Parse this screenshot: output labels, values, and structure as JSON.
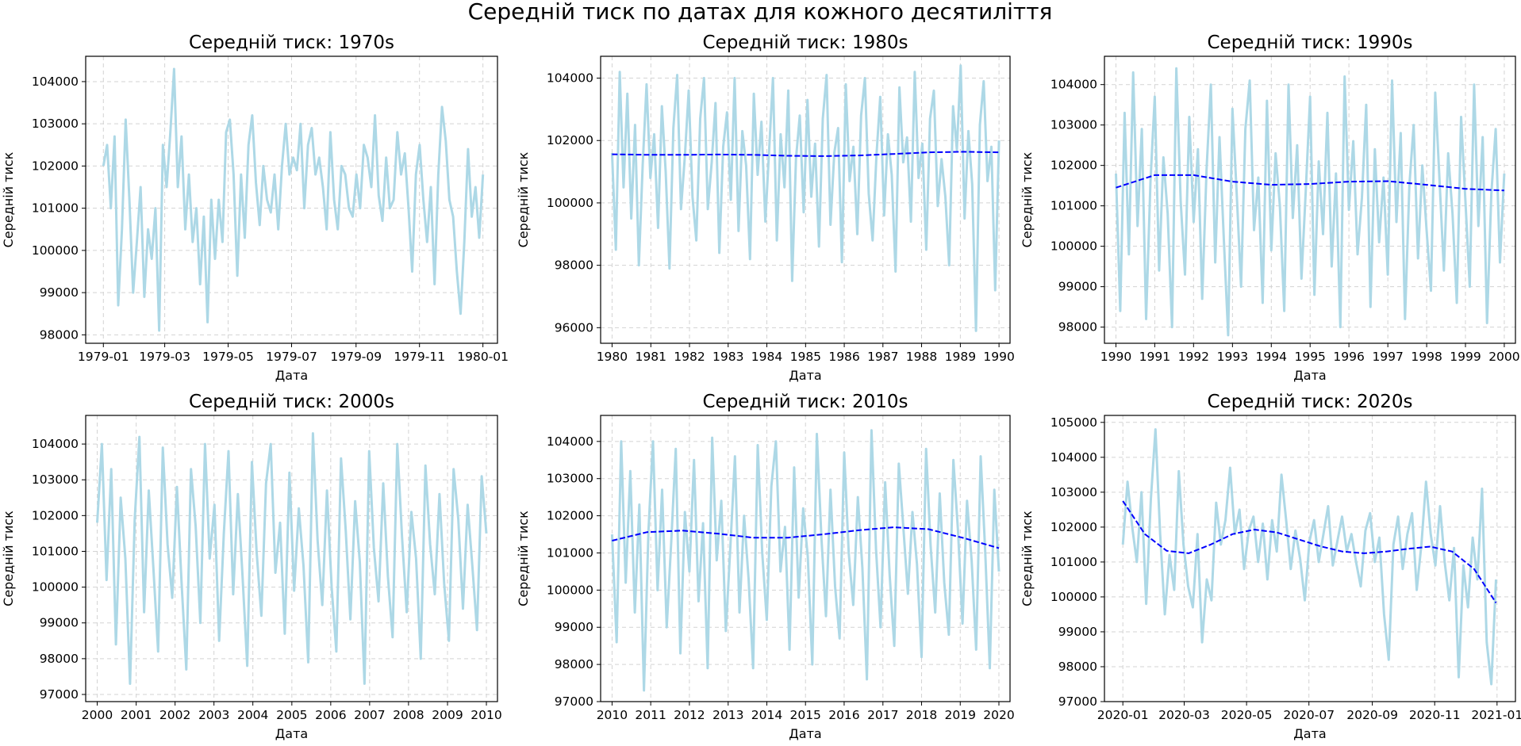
{
  "figure": {
    "suptitle": "Середній тиск по датах для кожного десятиліття"
  },
  "colors": {
    "raw_line": "#add8e6",
    "trend_line": "#0000ff",
    "grid": "#d3d3d3",
    "frame": "#000000"
  },
  "chart_data": [
    {
      "type": "line",
      "title": "Середній тиск: 1970s",
      "xlabel": "Дата",
      "ylabel": "Середній тиск",
      "grid": true,
      "x_range": [
        "1978-12-15",
        "1980-01-15"
      ],
      "ylim": [
        97800,
        104600
      ],
      "x_ticks": [
        "1979-01",
        "1979-03",
        "1979-05",
        "1979-07",
        "1979-09",
        "1979-11",
        "1980-01"
      ],
      "y_ticks": [
        98000,
        99000,
        100000,
        101000,
        102000,
        103000,
        104000
      ],
      "series": [
        {
          "style": "raw",
          "x_start": "1979-01-01",
          "x_end": "1980-01-01",
          "values": [
            102000,
            102500,
            101000,
            102700,
            98700,
            100500,
            103100,
            101200,
            99000,
            100200,
            101500,
            98900,
            100500,
            99800,
            101000,
            98100,
            102500,
            101500,
            102800,
            104300,
            101500,
            102700,
            100500,
            101800,
            100200,
            101000,
            99200,
            100800,
            98300,
            101200,
            99800,
            101200,
            100200,
            102800,
            103100,
            101800,
            99400,
            101800,
            100300,
            102500,
            103200,
            101600,
            100600,
            102000,
            101200,
            100900,
            101800,
            100500,
            102000,
            103000,
            101800,
            102200,
            101900,
            103000,
            101000,
            102500,
            102900,
            101800,
            102200,
            101500,
            100500,
            102800,
            101200,
            100500,
            102000,
            101800,
            101000,
            100800,
            101800,
            101000,
            102500,
            102200,
            101500,
            103200,
            101300,
            100700,
            102200,
            101000,
            101200,
            102800,
            101800,
            102300,
            101000,
            99500,
            101800,
            102500,
            101200,
            100200,
            101500,
            99200,
            101800,
            103400,
            102600,
            101200,
            100800,
            99500,
            98500,
            100200,
            102400,
            100800,
            101500,
            100300,
            101800
          ]
        }
      ]
    },
    {
      "type": "line",
      "title": "Середній тиск: 1980s",
      "xlabel": "Дата",
      "ylabel": "Середній тиск",
      "grid": true,
      "x_range": [
        "1979-09-15",
        "1990-04-15"
      ],
      "ylim": [
        95500,
        104700
      ],
      "x_ticks": [
        "1980",
        "1981",
        "1982",
        "1983",
        "1984",
        "1985",
        "1986",
        "1987",
        "1988",
        "1989",
        "1990"
      ],
      "y_ticks": [
        96000,
        98000,
        100000,
        102000,
        104000
      ],
      "series": [
        {
          "style": "raw",
          "x_start": "1980-01-01",
          "x_end": "1990-01-01",
          "values": [
            101600,
            98500,
            104200,
            100500,
            103500,
            99500,
            102500,
            98000,
            101200,
            103800,
            100800,
            102200,
            99200,
            103100,
            101000,
            97900,
            102400,
            104100,
            99800,
            101500,
            103600,
            100200,
            98800,
            102700,
            104000,
            99800,
            101300,
            103200,
            98400,
            101800,
            102900,
            100100,
            104000,
            99100,
            102300,
            101200,
            98200,
            103500,
            100900,
            102600,
            99400,
            101700,
            104000,
            98800,
            102200,
            100500,
            103600,
            97500,
            101400,
            102800,
            99700,
            103300,
            100200,
            101900,
            98600,
            102700,
            104100,
            99300,
            101600,
            102400,
            98100,
            103800,
            100700,
            101800,
            99000,
            102800,
            104000,
            100300,
            98800,
            101500,
            103400,
            99600,
            102200,
            100900,
            97800,
            103700,
            101300,
            102100,
            99400,
            104200,
            100800,
            101900,
            98500,
            102700,
            103600,
            99900,
            101400,
            100200,
            98000,
            103100,
            101700,
            104400,
            99500,
            102300,
            100600,
            95900,
            102500,
            103900,
            100700,
            101800,
            97200,
            102000
          ]
        },
        {
          "style": "trend",
          "x_start": "1980-01-01",
          "x_end": "1990-01-01",
          "values": [
            101560,
            101540,
            101540,
            101550,
            101540,
            101510,
            101500,
            101520,
            101570,
            101620,
            101640,
            101620
          ]
        }
      ]
    },
    {
      "type": "line",
      "title": "Середній тиск: 1990s",
      "xlabel": "Дата",
      "ylabel": "Середній тиск",
      "grid": true,
      "x_range": [
        "1989-09-15",
        "2000-04-15"
      ],
      "ylim": [
        97600,
        104700
      ],
      "x_ticks": [
        "1990",
        "1991",
        "1992",
        "1993",
        "1994",
        "1995",
        "1996",
        "1997",
        "1998",
        "1999",
        "2000"
      ],
      "y_ticks": [
        98000,
        99000,
        100000,
        101000,
        102000,
        103000,
        104000
      ],
      "series": [
        {
          "style": "raw",
          "x_start": "1990-01-01",
          "x_end": "2000-01-01",
          "values": [
            101800,
            98400,
            103300,
            99800,
            104300,
            100500,
            102900,
            98200,
            101600,
            103700,
            99400,
            102200,
            100800,
            98000,
            104400,
            101100,
            99300,
            103200,
            100600,
            102400,
            98700,
            101900,
            104000,
            99600,
            102700,
            100200,
            97800,
            103400,
            101300,
            99000,
            102900,
            104100,
            100400,
            101700,
            98600,
            103600,
            99900,
            102300,
            101000,
            98400,
            104000,
            100700,
            102500,
            99200,
            101400,
            103700,
            98800,
            102100,
            100300,
            103300,
            99500,
            101800,
            98000,
            104200,
            100900,
            102600,
            99800,
            101200,
            103500,
            98500,
            102400,
            100100,
            101700,
            99300,
            104100,
            100600,
            102800,
            98200,
            101500,
            103000,
            99700,
            102000,
            100400,
            98900,
            103800,
            101600,
            99400,
            102300,
            100800,
            98600,
            103200,
            101100,
            99000,
            104000,
            100500,
            102700,
            98100,
            101300,
            102900,
            99600,
            101800
          ]
        },
        {
          "style": "trend",
          "x_start": "1990-01-01",
          "x_end": "2000-01-01",
          "values": [
            101450,
            101760,
            101760,
            101600,
            101520,
            101540,
            101600,
            101610,
            101520,
            101420,
            101380
          ]
        }
      ]
    },
    {
      "type": "line",
      "title": "Середній тиск: 2000s",
      "xlabel": "Дата",
      "ylabel": "Середній тиск",
      "grid": true,
      "x_range": [
        "1999-09-15",
        "2010-04-15"
      ],
      "ylim": [
        96800,
        104800
      ],
      "x_ticks": [
        "2000",
        "2001",
        "2002",
        "2003",
        "2004",
        "2005",
        "2006",
        "2007",
        "2008",
        "2009",
        "2010"
      ],
      "y_ticks": [
        97000,
        98000,
        99000,
        100000,
        101000,
        102000,
        103000,
        104000
      ],
      "series": [
        {
          "style": "raw",
          "x_start": "2000-01-01",
          "x_end": "2010-01-01",
          "values": [
            101800,
            104000,
            100200,
            103300,
            98400,
            102500,
            100800,
            97300,
            101900,
            104200,
            99300,
            102700,
            100500,
            98200,
            103900,
            101200,
            99700,
            102800,
            100100,
            97700,
            103300,
            101700,
            99000,
            104000,
            100800,
            102300,
            98500,
            101500,
            103800,
            99800,
            102600,
            100300,
            97800,
            103500,
            101000,
            99200,
            102900,
            104000,
            100400,
            101800,
            98700,
            103200,
            99900,
            102200,
            100600,
            97900,
            104300,
            101300,
            99500,
            102700,
            100000,
            98200,
            103600,
            101600,
            99100,
            102400,
            100700,
            97300,
            103800,
            101100,
            99600,
            102900,
            100300,
            98600,
            104000,
            101400,
            99300,
            102100,
            100800,
            98000,
            103400,
            101200,
            99800,
            102600,
            100100,
            98500,
            103300,
            101900,
            99400,
            102300,
            100600,
            98800,
            103100,
            101500
          ]
        }
      ]
    },
    {
      "type": "line",
      "title": "Середній тиск: 2010s",
      "xlabel": "Дата",
      "ylabel": "Середній тиск",
      "grid": true,
      "x_range": [
        "2009-09-15",
        "2020-04-15"
      ],
      "ylim": [
        97000,
        104700
      ],
      "x_ticks": [
        "2010",
        "2011",
        "2012",
        "2013",
        "2014",
        "2015",
        "2016",
        "2017",
        "2018",
        "2019",
        "2020"
      ],
      "y_ticks": [
        97000,
        98000,
        99000,
        100000,
        101000,
        102000,
        103000,
        104000
      ],
      "series": [
        {
          "style": "raw",
          "x_start": "2010-01-01",
          "x_end": "2020-01-01",
          "values": [
            101500,
            98600,
            104000,
            100200,
            103200,
            99400,
            102300,
            97300,
            101600,
            104000,
            100000,
            102700,
            99000,
            101300,
            103800,
            98300,
            102100,
            100500,
            103500,
            99700,
            101800,
            97900,
            104100,
            100800,
            102400,
            98900,
            101200,
            103600,
            99400,
            102000,
            100300,
            97900,
            103900,
            101000,
            99200,
            102800,
            104000,
            100500,
            101700,
            98400,
            103300,
            99800,
            102200,
            100900,
            98000,
            104200,
            101400,
            99300,
            102700,
            100100,
            98700,
            103700,
            101000,
            99600,
            102500,
            100600,
            97600,
            104300,
            101100,
            99000,
            102900,
            100400,
            98500,
            103400,
            101700,
            99900,
            102100,
            100700,
            98200,
            103800,
            101200,
            99400,
            102600,
            100200,
            98800,
            103500,
            101600,
            99100,
            102400,
            100800,
            98400,
            103600,
            101000,
            97900,
            102700,
            100500
          ]
        },
        {
          "style": "trend",
          "x_start": "2010-01-01",
          "x_end": "2020-01-01",
          "values": [
            101330,
            101560,
            101600,
            101520,
            101410,
            101410,
            101500,
            101610,
            101690,
            101640,
            101400,
            101130
          ]
        }
      ]
    },
    {
      "type": "line",
      "title": "Середній тиск: 2020s",
      "xlabel": "Дата",
      "ylabel": "Середній тиск",
      "grid": true,
      "x_range": [
        "2019-12-14",
        "2021-01-19"
      ],
      "ylim": [
        97000,
        105200
      ],
      "x_ticks": [
        "2020-01",
        "2020-03",
        "2020-05",
        "2020-07",
        "2020-09",
        "2020-11",
        "2021-01"
      ],
      "y_ticks": [
        97000,
        98000,
        99000,
        100000,
        101000,
        102000,
        103000,
        104000,
        105000
      ],
      "series": [
        {
          "style": "raw",
          "x_start": "2020-01-01",
          "x_end": "2020-12-31",
          "values": [
            101500,
            103300,
            102000,
            101000,
            103000,
            99800,
            102800,
            104800,
            101800,
            99500,
            101200,
            100200,
            103600,
            101500,
            100300,
            99700,
            101800,
            98700,
            100500,
            99900,
            102700,
            101500,
            102200,
            103700,
            101800,
            102500,
            100800,
            101900,
            102300,
            101000,
            102100,
            100500,
            102200,
            101300,
            103500,
            102200,
            100800,
            101900,
            101100,
            99900,
            101600,
            102200,
            101000,
            101800,
            102600,
            100900,
            101600,
            102300,
            101300,
            101800,
            101000,
            100300,
            101900,
            102400,
            101000,
            101700,
            99500,
            98200,
            101500,
            102300,
            100800,
            101800,
            102400,
            100200,
            101500,
            103300,
            101800,
            100900,
            102600,
            101000,
            99900,
            101400,
            97700,
            100900,
            99700,
            101700,
            100500,
            103100,
            98700,
            97500,
            100500
          ]
        },
        {
          "style": "trend",
          "x_start": "2020-01-01",
          "x_end": "2020-12-31",
          "values": [
            102750,
            101800,
            101320,
            101250,
            101500,
            101800,
            101930,
            101850,
            101650,
            101450,
            101300,
            101250,
            101300,
            101380,
            101440,
            101300,
            100800,
            99830
          ]
        }
      ]
    }
  ]
}
